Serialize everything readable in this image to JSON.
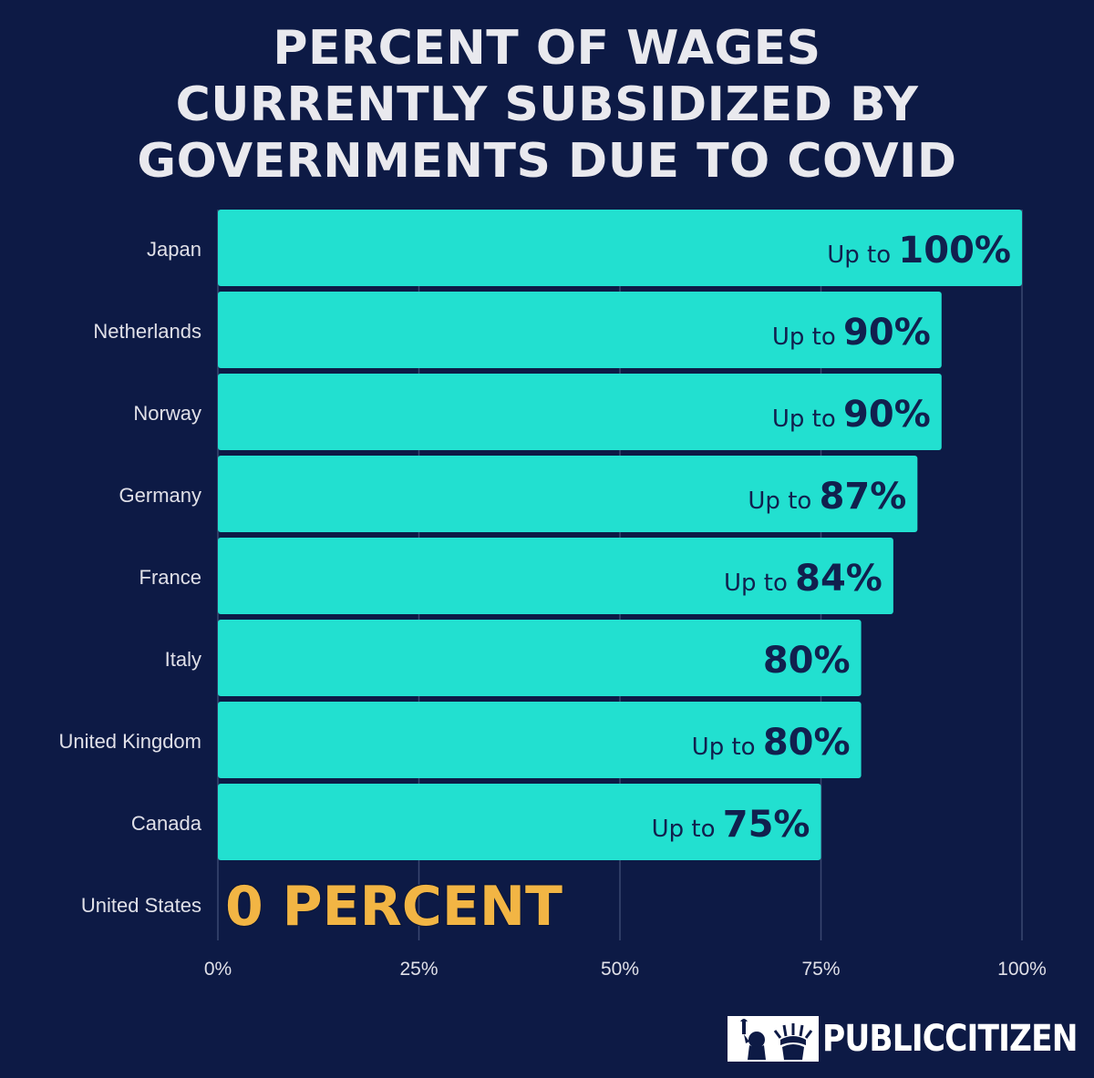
{
  "title_lines": [
    "PERCENT OF WAGES",
    "CURRENTLY SUBSIDIZED BY",
    "GOVERNMENTS DUE TO COVID"
  ],
  "colors": {
    "background": "#0d1a45",
    "bar": "#22e0d0",
    "bar_label": "#11204e",
    "us_label": "#f2b544",
    "axis_text": "#e0e0e8",
    "grid": "#3a4770"
  },
  "chart_data": {
    "type": "bar",
    "orientation": "horizontal",
    "categories": [
      "Japan",
      "Netherlands",
      "Norway",
      "Germany",
      "France",
      "Italy",
      "United Kingdom",
      "Canada",
      "United States"
    ],
    "values": [
      100,
      90,
      90,
      87,
      84,
      80,
      80,
      75,
      0
    ],
    "value_labels": [
      {
        "prefix": "Up to",
        "value": "100%"
      },
      {
        "prefix": "Up to",
        "value": "90%"
      },
      {
        "prefix": "Up to",
        "value": "90%"
      },
      {
        "prefix": "Up to",
        "value": "87%"
      },
      {
        "prefix": "Up to",
        "value": "84%"
      },
      {
        "prefix": "",
        "value": "80%"
      },
      {
        "prefix": "Up to",
        "value": "80%"
      },
      {
        "prefix": "Up to",
        "value": "75%"
      },
      {
        "prefix": "",
        "value": "0 PERCENT"
      }
    ],
    "xlim": [
      0,
      100
    ],
    "xticks": [
      0,
      25,
      50,
      75,
      100
    ],
    "xtick_labels": [
      "0%",
      "25%",
      "50%",
      "75%",
      "100%"
    ],
    "grid": true
  },
  "logo": {
    "text": "PUBLICCITIZEN",
    "icon": "statue-of-liberty-icon"
  }
}
